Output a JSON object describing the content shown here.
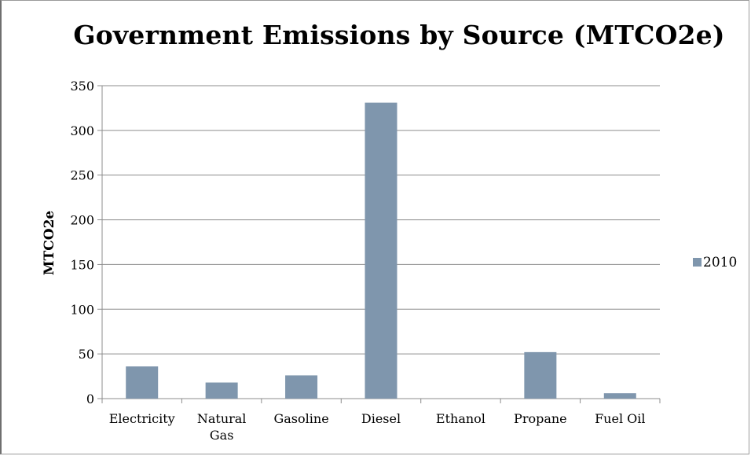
{
  "chart_data": {
    "type": "bar",
    "title": "Government Emissions by Source (MTCO2e)",
    "xlabel": "",
    "ylabel": "MTCO2e",
    "categories": [
      [
        "Electricity"
      ],
      [
        "Natural",
        "Gas"
      ],
      [
        "Gasoline"
      ],
      [
        "Diesel"
      ],
      [
        "Ethanol"
      ],
      [
        "Propane"
      ],
      [
        "Fuel Oil"
      ]
    ],
    "series": [
      {
        "name": "2010",
        "color": "#7f96ad",
        "values": [
          36,
          18,
          26,
          331,
          0,
          52,
          6
        ]
      }
    ],
    "ylim": [
      0,
      350
    ],
    "yticks": [
      0,
      50,
      100,
      150,
      200,
      250,
      300,
      350
    ],
    "grid": true,
    "legend": "right"
  }
}
